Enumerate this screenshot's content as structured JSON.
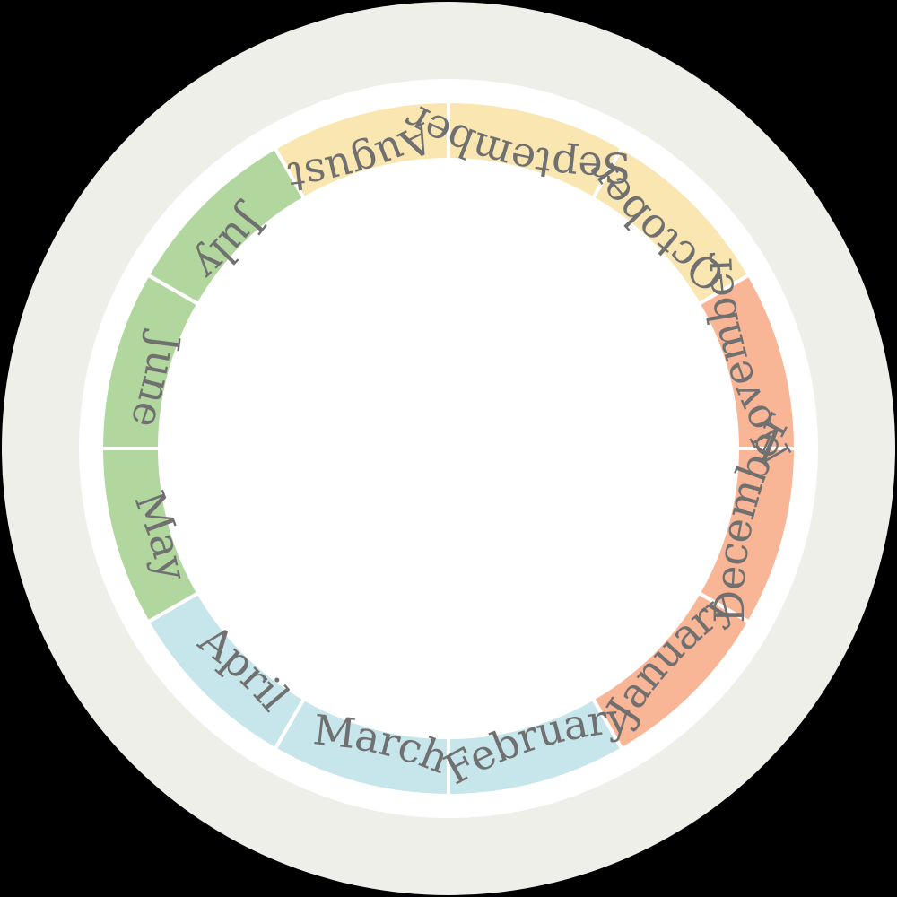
{
  "colors": {
    "background": "#000000",
    "outer_ring": "#efefe9",
    "gap": "#ffffff",
    "center": "#ffffff",
    "separator": "#ffffff",
    "label_text": "#707070"
  },
  "months": [
    {
      "label": "January",
      "color": "#c6e6eb"
    },
    {
      "label": "February",
      "color": "#c6e6eb"
    },
    {
      "label": "March",
      "color": "#b1d79e"
    },
    {
      "label": "April",
      "color": "#b1d79e"
    },
    {
      "label": "May",
      "color": "#b1d79e"
    },
    {
      "label": "June",
      "color": "#f9e6b1"
    },
    {
      "label": "July",
      "color": "#f9e6b1"
    },
    {
      "label": "August",
      "color": "#f9e6b1"
    },
    {
      "label": "September",
      "color": "#f9b697"
    },
    {
      "label": "October",
      "color": "#f9b697"
    },
    {
      "label": "November",
      "color": "#f9b697"
    },
    {
      "label": "December",
      "color": "#c6e6eb"
    }
  ]
}
